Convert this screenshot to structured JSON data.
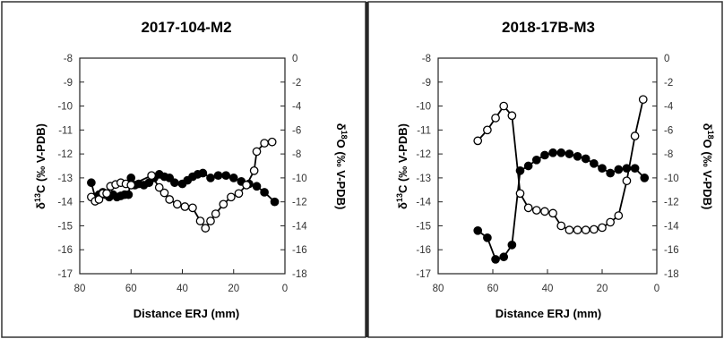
{
  "chart_data": [
    {
      "type": "line",
      "title": "2017-104-M2",
      "xlabel": "Distance ERJ (mm)",
      "ylabel_left": "δ13C (‰ V-PDB)",
      "ylabel_right": "δ18O (‰ V-PDB)",
      "xlim": [
        80,
        0
      ],
      "ylim_left": [
        -17,
        -8
      ],
      "ylim_right": [
        -18,
        0
      ],
      "x_ticks": [
        "80",
        "60",
        "40",
        "20",
        "0"
      ],
      "y_left_ticks": [
        "-8",
        "-9",
        "-10",
        "-11",
        "-12",
        "-13",
        "-14",
        "-15",
        "-16",
        "-17"
      ],
      "y_right_ticks": [
        "0",
        "-2",
        "-4",
        "-6",
        "-8",
        "-10",
        "-12",
        "-14",
        "-16",
        "-18"
      ],
      "grid": false,
      "series": [
        {
          "axis": "left",
          "marker": "filled-circle",
          "color": "#000000",
          "x": [
            75.5,
            74,
            72.5,
            71,
            70,
            68.5,
            67,
            65.5,
            64,
            62.5,
            61,
            60,
            58.5,
            57,
            55,
            53,
            51,
            49,
            47,
            45,
            43,
            40,
            38,
            36,
            34,
            32,
            29,
            26,
            23,
            20,
            17,
            14,
            11,
            8,
            4
          ],
          "values": [
            -13.2,
            -13.8,
            -13.7,
            -13.6,
            -13.7,
            -13.8,
            -13.7,
            -13.8,
            -13.75,
            -13.7,
            -13.7,
            -13.0,
            -13.3,
            -13.25,
            -13.3,
            -13.2,
            -13.0,
            -12.85,
            -12.95,
            -13.0,
            -13.2,
            -13.25,
            -13.1,
            -12.95,
            -12.85,
            -12.8,
            -13.0,
            -12.9,
            -12.9,
            -13.0,
            -13.15,
            -13.25,
            -13.35,
            -13.6,
            -14.0
          ]
        },
        {
          "axis": "right",
          "marker": "open-circle",
          "color": "#000000",
          "x": [
            75.5,
            74,
            72.5,
            71,
            69.5,
            68,
            66,
            64,
            62,
            60,
            52,
            49,
            47,
            45,
            42,
            39,
            36,
            33,
            31,
            29,
            27,
            24,
            21,
            18,
            15,
            12,
            11,
            8,
            5
          ],
          "values": [
            -11.6,
            -11.95,
            -11.8,
            -11.3,
            -11.3,
            -10.7,
            -10.55,
            -10.4,
            -10.5,
            -10.6,
            -9.8,
            -10.8,
            -11.25,
            -11.8,
            -12.2,
            -12.4,
            -12.5,
            -13.6,
            -14.2,
            -13.6,
            -13.0,
            -12.2,
            -11.6,
            -11.3,
            -10.6,
            -9.4,
            -7.8,
            -7.1,
            -7.0
          ]
        }
      ]
    },
    {
      "type": "line",
      "title": "2018-17B-M3",
      "xlabel": "Distance ERJ (mm)",
      "ylabel_left": "δ13C (‰ V-PDB)",
      "ylabel_right": "δ18O (‰ V-PDB)",
      "xlim": [
        80,
        0
      ],
      "ylim_left": [
        -17,
        -8
      ],
      "ylim_right": [
        -18,
        0
      ],
      "x_ticks": [
        "80",
        "60",
        "40",
        "20",
        "0"
      ],
      "y_left_ticks": [
        "-8",
        "-9",
        "-10",
        "-11",
        "-12",
        "-13",
        "-14",
        "-15",
        "-16",
        "-17"
      ],
      "y_right_ticks": [
        "0",
        "-2",
        "-4",
        "-6",
        "-8",
        "-10",
        "-12",
        "-14",
        "-16",
        "-18"
      ],
      "grid": false,
      "series": [
        {
          "axis": "left",
          "marker": "filled-circle",
          "color": "#000000",
          "x": [
            65.5,
            62,
            59,
            56,
            53,
            50,
            47,
            44,
            41,
            38,
            35,
            32,
            29,
            26,
            23,
            20,
            17,
            14,
            11,
            8,
            4.5
          ],
          "values": [
            -15.2,
            -15.5,
            -16.4,
            -16.3,
            -15.8,
            -12.7,
            -12.5,
            -12.25,
            -12.05,
            -11.95,
            -11.95,
            -12.0,
            -12.1,
            -12.2,
            -12.4,
            -12.6,
            -12.8,
            -12.65,
            -12.6,
            -12.6,
            -13.0
          ]
        },
        {
          "axis": "right",
          "marker": "open-circle",
          "color": "#000000",
          "x": [
            65.5,
            62,
            59,
            56,
            53,
            50,
            47,
            44,
            41,
            38,
            35,
            32,
            29,
            26,
            23,
            20,
            17,
            14,
            11,
            8,
            5
          ],
          "values": [
            -6.9,
            -6.0,
            -5.0,
            -4.0,
            -4.8,
            -11.3,
            -12.5,
            -12.7,
            -12.8,
            -12.95,
            -14.0,
            -14.35,
            -14.35,
            -14.35,
            -14.3,
            -14.15,
            -13.7,
            -13.15,
            -10.25,
            -6.5,
            -3.45
          ]
        }
      ]
    }
  ]
}
